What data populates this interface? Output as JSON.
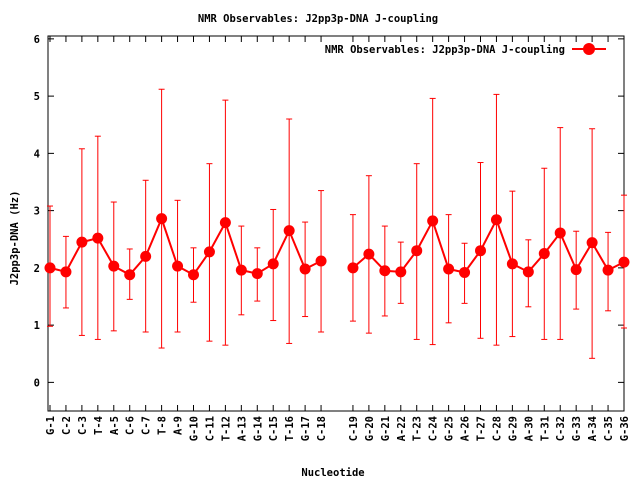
{
  "chart_data": {
    "type": "line",
    "title": "NMR Observables: J2pp3p-DNA J-coupling",
    "xlabel": "Nucleotide",
    "ylabel": "J2pp3p-DNA (Hz)",
    "ylim": [
      -0.5,
      6.05
    ],
    "yticks": [
      "0",
      "1",
      "2",
      "3",
      "4",
      "5",
      "6"
    ],
    "grid": false,
    "legend_position": "top-right",
    "color": "#ff0000",
    "series": [
      {
        "name": "NMR Observables: J2pp3p-DNA J-coupling",
        "segments": [
          {
            "categories": [
              "G-1",
              "C-2",
              "C-3",
              "T-4",
              "A-5",
              "C-6",
              "C-7",
              "T-8",
              "A-9",
              "G-10",
              "C-11",
              "T-12",
              "A-13",
              "G-14",
              "C-15",
              "T-16",
              "G-17",
              "C-18"
            ],
            "values": [
              2.0,
              1.93,
              2.45,
              2.52,
              2.03,
              1.88,
              2.2,
              2.86,
              2.03,
              1.88,
              2.28,
              2.79,
              1.96,
              1.9,
              2.07,
              2.65,
              1.98,
              2.12
            ],
            "err_low": [
              0.98,
              1.3,
              0.82,
              0.75,
              0.9,
              1.45,
              0.88,
              0.6,
              0.88,
              1.4,
              0.72,
              0.65,
              1.18,
              1.42,
              1.08,
              0.68,
              1.15,
              0.88
            ],
            "err_high": [
              3.08,
              2.55,
              4.08,
              4.3,
              3.15,
              2.33,
              3.53,
              5.12,
              3.18,
              2.35,
              3.82,
              4.93,
              2.73,
              2.35,
              3.02,
              4.6,
              2.8,
              3.35
            ]
          },
          {
            "categories": [
              "C-19",
              "G-20",
              "G-21",
              "A-22",
              "T-23",
              "C-24",
              "G-25",
              "A-26",
              "T-27",
              "C-28",
              "G-29",
              "A-30",
              "T-31",
              "C-32",
              "G-33",
              "A-34",
              "C-35",
              "G-36"
            ],
            "values": [
              2.0,
              2.24,
              1.95,
              1.93,
              2.3,
              2.82,
              1.98,
              1.92,
              2.3,
              2.84,
              2.07,
              1.93,
              2.25,
              2.61,
              1.97,
              2.44,
              1.96,
              2.1
            ],
            "err_low": [
              1.07,
              0.86,
              1.16,
              1.38,
              0.75,
              0.66,
              1.04,
              1.38,
              0.77,
              0.65,
              0.8,
              1.32,
              0.75,
              0.75,
              1.28,
              0.42,
              1.25,
              0.95
            ],
            "err_high": [
              2.93,
              3.61,
              2.73,
              2.45,
              3.82,
              4.96,
              2.93,
              2.43,
              3.84,
              5.03,
              3.34,
              2.49,
              3.74,
              4.45,
              2.64,
              4.43,
              2.62,
              3.27
            ]
          }
        ]
      }
    ]
  }
}
